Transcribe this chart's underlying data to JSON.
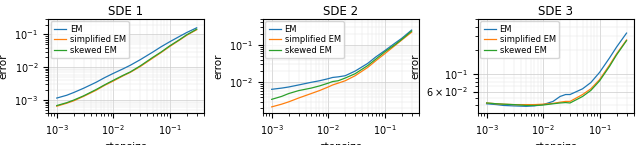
{
  "titles": [
    "SDE 1",
    "SDE 2",
    "SDE 3"
  ],
  "xlabel": "stepsize",
  "ylabel": "error",
  "legend_labels": [
    "EM",
    "simplified EM",
    "skewed EM"
  ],
  "colors": [
    "#1f77b4",
    "#ff7f0e",
    "#2ca02c"
  ],
  "sde1": {
    "x": [
      0.001,
      0.0015,
      0.002,
      0.003,
      0.005,
      0.007,
      0.01,
      0.015,
      0.02,
      0.03,
      0.05,
      0.07,
      0.1,
      0.15,
      0.2,
      0.3
    ],
    "em": [
      0.00115,
      0.0014,
      0.0017,
      0.0023,
      0.0035,
      0.0048,
      0.0065,
      0.009,
      0.0115,
      0.017,
      0.029,
      0.042,
      0.06,
      0.088,
      0.115,
      0.16
    ],
    "simplified": [
      0.00065,
      0.0008,
      0.00095,
      0.0013,
      0.002,
      0.0028,
      0.0038,
      0.0055,
      0.007,
      0.0105,
      0.019,
      0.028,
      0.043,
      0.068,
      0.095,
      0.14
    ],
    "skewed": [
      0.00068,
      0.00083,
      0.001,
      0.00135,
      0.0021,
      0.0029,
      0.004,
      0.0057,
      0.0072,
      0.011,
      0.02,
      0.029,
      0.045,
      0.07,
      0.098,
      0.145
    ],
    "xlim": [
      0.0007,
      0.4
    ],
    "ylim": [
      0.0004,
      0.3
    ],
    "yticks": [
      0.001,
      0.01,
      0.1
    ]
  },
  "sde2": {
    "x": [
      0.001,
      0.0015,
      0.002,
      0.003,
      0.005,
      0.007,
      0.01,
      0.012,
      0.015,
      0.02,
      0.03,
      0.05,
      0.07,
      0.1,
      0.15,
      0.2,
      0.3
    ],
    "em": [
      0.0065,
      0.007,
      0.0075,
      0.0085,
      0.01,
      0.011,
      0.0125,
      0.0135,
      0.014,
      0.015,
      0.02,
      0.032,
      0.048,
      0.07,
      0.11,
      0.15,
      0.25
    ],
    "simplified": [
      0.0022,
      0.0026,
      0.003,
      0.0038,
      0.005,
      0.006,
      0.0075,
      0.0085,
      0.0095,
      0.011,
      0.015,
      0.025,
      0.038,
      0.058,
      0.095,
      0.135,
      0.22
    ],
    "skewed": [
      0.0035,
      0.0042,
      0.005,
      0.006,
      0.007,
      0.008,
      0.0095,
      0.0105,
      0.011,
      0.013,
      0.017,
      0.028,
      0.042,
      0.065,
      0.1,
      0.14,
      0.235
    ],
    "xlim": [
      0.0007,
      0.4
    ],
    "ylim": [
      0.0015,
      0.5
    ],
    "yticks": [
      0.01,
      0.1
    ]
  },
  "sde3": {
    "x": [
      0.001,
      0.0015,
      0.002,
      0.003,
      0.005,
      0.007,
      0.01,
      0.015,
      0.02,
      0.025,
      0.03,
      0.05,
      0.07,
      0.1,
      0.15,
      0.2,
      0.3
    ],
    "em": [
      0.042,
      0.041,
      0.04,
      0.0395,
      0.039,
      0.0395,
      0.041,
      0.045,
      0.052,
      0.055,
      0.055,
      0.065,
      0.078,
      0.105,
      0.16,
      0.22,
      0.33
    ],
    "simplified": [
      0.043,
      0.042,
      0.0415,
      0.041,
      0.041,
      0.041,
      0.0415,
      0.0425,
      0.044,
      0.045,
      0.045,
      0.055,
      0.065,
      0.085,
      0.13,
      0.18,
      0.27
    ],
    "skewed": [
      0.043,
      0.042,
      0.0415,
      0.041,
      0.04,
      0.04,
      0.0405,
      0.042,
      0.043,
      0.0435,
      0.043,
      0.052,
      0.062,
      0.082,
      0.125,
      0.175,
      0.265
    ],
    "xlim": [
      0.0007,
      0.4
    ],
    "ylim": [
      0.032,
      0.5
    ],
    "ytick_val": 0.06,
    "ytick_label": "$6 \\times 10^{-2}$"
  },
  "figsize": [
    6.4,
    1.45
  ],
  "dpi": 100
}
